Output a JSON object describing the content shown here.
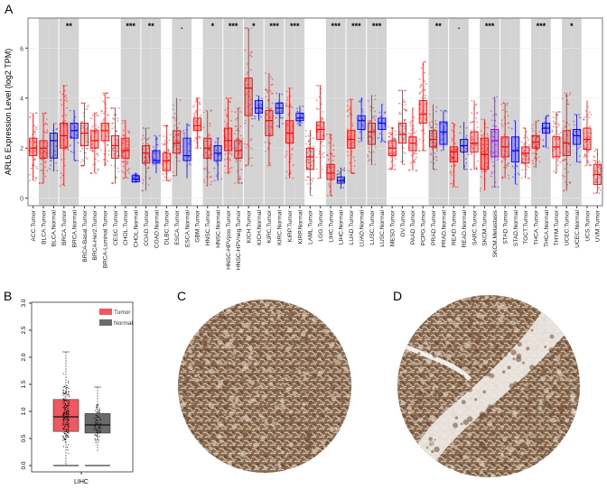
{
  "panels": {
    "a": "A",
    "b": "B",
    "c": "C",
    "d": "D"
  },
  "chart_data": [
    {
      "type": "box",
      "panel": "A",
      "ylabel": "ARL6 Expression Level (log2 TPM)",
      "ylim": [
        -0.3,
        7.2
      ],
      "yticks": [
        0,
        2,
        4,
        6
      ],
      "grid": true,
      "colors": {
        "Tumor": "#ff0000",
        "Normal": "#0000ff",
        "Metastasis": "#9900ff",
        "shade": "#d3d3d3"
      },
      "shaded_groups": [
        "BLCA",
        "BRCA",
        "CHOL",
        "COAD",
        "ESCA",
        "HNSC",
        "HNSC-HPV",
        "KICH",
        "KIRC",
        "KIRP",
        "LIHC",
        "LUAD",
        "LUSC",
        "PRAD",
        "READ",
        "SKCM",
        "STAD",
        "THCA",
        "UCEC"
      ],
      "significance": [
        {
          "group": "BRCA",
          "label": "**"
        },
        {
          "group": "CHOL",
          "label": "***"
        },
        {
          "group": "COAD",
          "label": "**"
        },
        {
          "group": "ESCA",
          "label": "."
        },
        {
          "group": "HNSC",
          "label": "*"
        },
        {
          "group": "HNSC-HPV",
          "label": "***"
        },
        {
          "group": "KICH",
          "label": "*"
        },
        {
          "group": "KIRC",
          "label": "***"
        },
        {
          "group": "KIRP",
          "label": "***"
        },
        {
          "group": "LIHC",
          "label": "***"
        },
        {
          "group": "LUAD",
          "label": "***"
        },
        {
          "group": "LUSC",
          "label": "***"
        },
        {
          "group": "PRAD",
          "label": "**"
        },
        {
          "group": "READ",
          "label": "."
        },
        {
          "group": "SKCM",
          "label": "***"
        },
        {
          "group": "THCA",
          "label": "***"
        },
        {
          "group": "UCEC",
          "label": "*"
        }
      ],
      "categories": [
        {
          "label": "ACC.Tumor",
          "group": "ACC",
          "kind": "Tumor",
          "median": 2.0,
          "q1": 1.7,
          "q3": 2.4,
          "min": 0.7,
          "max": 3.4
        },
        {
          "label": "BLCA.Tumor",
          "group": "BLCA",
          "kind": "Tumor",
          "median": 2.0,
          "q1": 1.6,
          "q3": 2.3,
          "min": 0.6,
          "max": 3.4
        },
        {
          "label": "BLCA.Normal",
          "group": "BLCA",
          "kind": "Normal",
          "median": 2.3,
          "q1": 1.6,
          "q3": 2.6,
          "min": 1.1,
          "max": 3.0
        },
        {
          "label": "BRCA.Tumor",
          "group": "BRCA",
          "kind": "Tumor",
          "median": 2.5,
          "q1": 2.0,
          "q3": 3.0,
          "min": 0.5,
          "max": 4.5
        },
        {
          "label": "BRCA.Normal",
          "group": "BRCA",
          "kind": "Normal",
          "median": 2.7,
          "q1": 2.4,
          "q3": 3.0,
          "min": 1.5,
          "max": 3.5
        },
        {
          "label": "BRCA-Basal.Tumor",
          "group": "BRCA-Basal",
          "kind": "Tumor",
          "median": 2.6,
          "q1": 2.1,
          "q3": 3.0,
          "min": 1.3,
          "max": 3.8
        },
        {
          "label": "BRCA-Her2.Tumor",
          "group": "BRCA-Her2",
          "kind": "Tumor",
          "median": 2.3,
          "q1": 2.0,
          "q3": 2.7,
          "min": 1.0,
          "max": 3.4
        },
        {
          "label": "BRCA-Luminal.Tumor",
          "group": "BRCA-Luminal",
          "kind": "Tumor",
          "median": 2.7,
          "q1": 2.3,
          "q3": 3.0,
          "min": 1.3,
          "max": 4.2
        },
        {
          "label": "CESC.Tumor",
          "group": "CESC",
          "kind": "Tumor",
          "median": 2.1,
          "q1": 1.6,
          "q3": 2.5,
          "min": 0.6,
          "max": 3.6
        },
        {
          "label": "CHOL.Tumor",
          "group": "CHOL",
          "kind": "Tumor",
          "median": 1.9,
          "q1": 1.6,
          "q3": 2.4,
          "min": 0.8,
          "max": 3.1
        },
        {
          "label": "CHOL.Normal",
          "group": "CHOL",
          "kind": "Normal",
          "median": 0.75,
          "q1": 0.65,
          "q3": 0.9,
          "min": 0.6,
          "max": 1.0
        },
        {
          "label": "COAD.Tumor",
          "group": "COAD",
          "kind": "Tumor",
          "median": 1.8,
          "q1": 1.4,
          "q3": 2.1,
          "min": 0.3,
          "max": 2.8
        },
        {
          "label": "COAD.Normal",
          "group": "COAD",
          "kind": "Normal",
          "median": 1.5,
          "q1": 1.4,
          "q3": 1.9,
          "min": 1.0,
          "max": 2.5
        },
        {
          "label": "DLBC.Tumor",
          "group": "DLBC",
          "kind": "Tumor",
          "median": 1.5,
          "q1": 1.1,
          "q3": 1.8,
          "min": 0.7,
          "max": 2.9
        },
        {
          "label": "ESCA.Tumor",
          "group": "ESCA",
          "kind": "Tumor",
          "median": 2.2,
          "q1": 1.8,
          "q3": 2.7,
          "min": 0.9,
          "max": 4.0
        },
        {
          "label": "ESCA.Normal",
          "group": "ESCA",
          "kind": "Normal",
          "median": 1.7,
          "q1": 1.5,
          "q3": 2.4,
          "min": 0.8,
          "max": 3.0
        },
        {
          "label": "GBM.Tumor",
          "group": "GBM",
          "kind": "Tumor",
          "median": 2.9,
          "q1": 2.7,
          "q3": 3.2,
          "min": 2.0,
          "max": 4.0
        },
        {
          "label": "HNSC.Tumor",
          "group": "HNSC",
          "kind": "Tumor",
          "median": 2.0,
          "q1": 1.6,
          "q3": 2.4,
          "min": 0.5,
          "max": 3.5
        },
        {
          "label": "HNSC.Normal",
          "group": "HNSC",
          "kind": "Normal",
          "median": 1.8,
          "q1": 1.5,
          "q3": 2.1,
          "min": 0.7,
          "max": 2.4
        },
        {
          "label": "HNSC-HPVpos.Tumor",
          "group": "HNSC-HPV",
          "kind": "Tumor",
          "median": 2.3,
          "q1": 1.9,
          "q3": 2.8,
          "min": 1.0,
          "max": 4.0
        },
        {
          "label": "HNSC-HPVneg.Tumor",
          "group": "HNSC-HPV",
          "kind": "Tumor",
          "median": 1.9,
          "q1": 1.6,
          "q3": 2.3,
          "min": 0.6,
          "max": 3.6
        },
        {
          "label": "KICH.Tumor",
          "group": "KICH",
          "kind": "Tumor",
          "median": 4.4,
          "q1": 3.3,
          "q3": 4.8,
          "min": 1.3,
          "max": 6.8
        },
        {
          "label": "KICH.Normal",
          "group": "KICH",
          "kind": "Normal",
          "median": 3.6,
          "q1": 3.4,
          "q3": 3.9,
          "min": 3.1,
          "max": 4.1
        },
        {
          "label": "KIRC.Tumor",
          "group": "KIRC",
          "kind": "Tumor",
          "median": 3.1,
          "q1": 2.5,
          "q3": 3.5,
          "min": 1.3,
          "max": 5.0
        },
        {
          "label": "KIRC.Normal",
          "group": "KIRC",
          "kind": "Normal",
          "median": 3.6,
          "q1": 3.4,
          "q3": 3.8,
          "min": 2.8,
          "max": 4.2
        },
        {
          "label": "KIRP.Tumor",
          "group": "KIRP",
          "kind": "Tumor",
          "median": 2.6,
          "q1": 2.2,
          "q3": 3.1,
          "min": 0.8,
          "max": 4.4
        },
        {
          "label": "KIRP.Normal",
          "group": "KIRP",
          "kind": "Normal",
          "median": 3.2,
          "q1": 3.1,
          "q3": 3.4,
          "min": 2.9,
          "max": 3.7
        },
        {
          "label": "LAML.Tumor",
          "group": "LAML",
          "kind": "Tumor",
          "median": 1.65,
          "q1": 1.15,
          "q3": 2.0,
          "min": 0.1,
          "max": 2.7
        },
        {
          "label": "LGG.Tumor",
          "group": "LGG",
          "kind": "Tumor",
          "median": 2.75,
          "q1": 2.35,
          "q3": 3.05,
          "min": 0.8,
          "max": 4.5
        },
        {
          "label": "LIHC.Tumor",
          "group": "LIHC",
          "kind": "Tumor",
          "median": 1.0,
          "q1": 0.75,
          "q3": 1.35,
          "min": 0.1,
          "max": 2.55
        },
        {
          "label": "LIHC.Normal",
          "group": "LIHC",
          "kind": "Normal",
          "median": 0.7,
          "q1": 0.6,
          "q3": 0.85,
          "min": 0.4,
          "max": 1.2
        },
        {
          "label": "LUAD.Tumor",
          "group": "LUAD",
          "kind": "Tumor",
          "median": 2.35,
          "q1": 2.0,
          "q3": 2.7,
          "min": 1.0,
          "max": 3.95
        },
        {
          "label": "LUAD.Normal",
          "group": "LUAD",
          "kind": "Normal",
          "median": 3.1,
          "q1": 2.75,
          "q3": 3.3,
          "min": 2.25,
          "max": 4.0
        },
        {
          "label": "LUSC.Tumor",
          "group": "LUSC",
          "kind": "Tumor",
          "median": 2.65,
          "q1": 2.15,
          "q3": 3.0,
          "min": 1.35,
          "max": 4.1
        },
        {
          "label": "LUSC.Normal",
          "group": "LUSC",
          "kind": "Normal",
          "median": 3.0,
          "q1": 2.75,
          "q3": 3.2,
          "min": 2.25,
          "max": 3.75
        },
        {
          "label": "MESO.Tumor",
          "group": "MESO",
          "kind": "Tumor",
          "median": 2.0,
          "q1": 1.7,
          "q3": 2.3,
          "min": 1.15,
          "max": 2.85
        },
        {
          "label": "OV.Tumor",
          "group": "OV",
          "kind": "Tumor",
          "median": 2.55,
          "q1": 2.2,
          "q3": 3.0,
          "min": 1.35,
          "max": 4.3
        },
        {
          "label": "PAAD.Tumor",
          "group": "PAAD",
          "kind": "Tumor",
          "median": 2.2,
          "q1": 1.9,
          "q3": 2.45,
          "min": 1.1,
          "max": 3.6
        },
        {
          "label": "PCPG.Tumor",
          "group": "PCPG",
          "kind": "Tumor",
          "median": 3.35,
          "q1": 3.0,
          "q3": 3.9,
          "min": 1.9,
          "max": 5.45
        },
        {
          "label": "PRAD.Tumor",
          "group": "PRAD",
          "kind": "Tumor",
          "median": 2.35,
          "q1": 2.05,
          "q3": 2.7,
          "min": 1.15,
          "max": 3.75
        },
        {
          "label": "PRAD.Normal",
          "group": "PRAD",
          "kind": "Normal",
          "median": 2.65,
          "q1": 2.15,
          "q3": 3.05,
          "min": 1.9,
          "max": 3.5
        },
        {
          "label": "READ.Tumor",
          "group": "READ",
          "kind": "Tumor",
          "median": 1.85,
          "q1": 1.45,
          "q3": 2.05,
          "min": 0.45,
          "max": 3.0
        },
        {
          "label": "READ.Normal",
          "group": "READ",
          "kind": "Normal",
          "median": 2.1,
          "q1": 1.85,
          "q3": 2.35,
          "min": 1.15,
          "max": 3.05
        },
        {
          "label": "SARC.Tumor",
          "group": "SARC",
          "kind": "Tumor",
          "median": 2.2,
          "q1": 1.85,
          "q3": 2.65,
          "min": 1.15,
          "max": 3.9
        },
        {
          "label": "SKCM.Tumor",
          "group": "SKCM",
          "kind": "Tumor",
          "median": 1.75,
          "q1": 1.15,
          "q3": 2.4,
          "min": 0.3,
          "max": 3.15
        },
        {
          "label": "SKCM.Metastasis",
          "group": "SKCM",
          "kind": "Metastasis",
          "median": 2.3,
          "q1": 1.65,
          "q3": 2.75,
          "min": 0.45,
          "max": 4.05
        },
        {
          "label": "STAD.Tumor",
          "group": "STAD",
          "kind": "Tumor",
          "median": 2.05,
          "q1": 1.65,
          "q3": 2.45,
          "min": 0.8,
          "max": 3.8
        },
        {
          "label": "STAD.Normal",
          "group": "STAD",
          "kind": "Normal",
          "median": 1.9,
          "q1": 1.45,
          "q3": 2.45,
          "min": 0.55,
          "max": 3.1
        },
        {
          "label": "TGCT.Tumor",
          "group": "TGCT",
          "kind": "Tumor",
          "median": 1.8,
          "q1": 1.4,
          "q3": 2.05,
          "min": 0.8,
          "max": 2.8
        },
        {
          "label": "THCA.Tumor",
          "group": "THCA",
          "kind": "Tumor",
          "median": 2.25,
          "q1": 2.0,
          "q3": 2.5,
          "min": 1.2,
          "max": 3.1
        },
        {
          "label": "THCA.Normal",
          "group": "THCA",
          "kind": "Normal",
          "median": 2.8,
          "q1": 2.6,
          "q3": 3.0,
          "min": 2.0,
          "max": 3.3
        },
        {
          "label": "THYM.Tumor",
          "group": "THYM",
          "kind": "Tumor",
          "median": 2.05,
          "q1": 1.65,
          "q3": 2.45,
          "min": 1.0,
          "max": 3.45
        },
        {
          "label": "UCEC.Tumor",
          "group": "UCEC",
          "kind": "Tumor",
          "median": 2.2,
          "q1": 1.7,
          "q3": 2.7,
          "min": 0.3,
          "max": 4.2
        },
        {
          "label": "UCEC.Normal",
          "group": "UCEC",
          "kind": "Normal",
          "median": 2.5,
          "q1": 2.15,
          "q3": 2.75,
          "min": 1.45,
          "max": 3.35
        },
        {
          "label": "UCS.Tumor",
          "group": "UCS",
          "kind": "Tumor",
          "median": 2.35,
          "q1": 1.95,
          "q3": 2.8,
          "min": 1.3,
          "max": 3.9
        },
        {
          "label": "UVM.Tumor",
          "group": "UVM",
          "kind": "Tumor",
          "median": 0.95,
          "q1": 0.55,
          "q3": 1.35,
          "min": 0.2,
          "max": 1.95
        }
      ]
    },
    {
      "type": "box",
      "panel": "B",
      "xlabel": "LIHC",
      "ylim": [
        0,
        3
      ],
      "yticks": [
        "0.0",
        "0.5",
        "1.0",
        "1.5",
        "2.0",
        "2.5",
        "3.0"
      ],
      "legend": {
        "placement": "top-right",
        "entries": [
          {
            "name": "Tumor",
            "color": "#f0585e"
          },
          {
            "name": "Normal",
            "color": "#6b6b6b"
          }
        ]
      },
      "series": [
        {
          "name": "Tumor",
          "median": 0.9,
          "q1": 0.63,
          "q3": 1.22,
          "min": 0.0,
          "max": 2.1
        },
        {
          "name": "Normal",
          "median": 0.75,
          "q1": 0.6,
          "q3": 0.96,
          "min": 0.25,
          "max": 1.45
        }
      ]
    }
  ]
}
